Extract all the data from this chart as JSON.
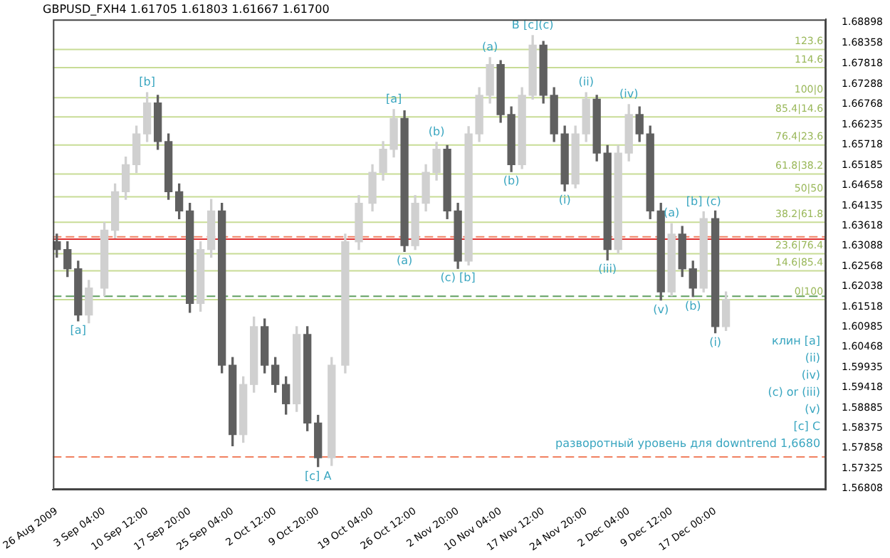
{
  "chart_data": {
    "type": "candlestick",
    "title": "GBPUSD_FXH4 1.61705 1.61803 1.61667 1.61700",
    "colors": [
      "#606060",
      "#606060",
      "#606060",
      "#d0d0d0",
      "#d0d0d0",
      "#d0d0d0",
      "#d0d0d0",
      "#d0d0d0",
      "#d0d0d0",
      "#606060",
      "#606060",
      "#606060",
      "#606060",
      "#d0d0d0",
      "#d0d0d0",
      "#606060",
      "#606060",
      "#d0d0d0",
      "#d0d0d0",
      "#606060",
      "#606060",
      "#606060",
      "#d0d0d0",
      "#606060",
      "#606060",
      "#d0d0d0",
      "#d0d0d0",
      "#d0d0d0",
      "#d0d0d0",
      "#d0d0d0",
      "#d0d0d0",
      "#606060",
      "#d0d0d0",
      "#d0d0d0",
      "#d0d0d0",
      "#606060",
      "#606060",
      "#d0d0d0",
      "#d0d0d0",
      "#d0d0d0",
      "#606060",
      "#606060",
      "#d0d0d0",
      "#d0d0d0",
      "#606060",
      "#606060",
      "#606060",
      "#d0d0d0",
      "#d0d0d0",
      "#606060",
      "#606060",
      "#d0d0d0",
      "#d0d0d0",
      "#606060",
      "#606060",
      "#606060",
      "#d0d0d0",
      "#606060",
      "#606060",
      "#d0d0d0",
      "#606060",
      "#d0d0d0"
    ],
    "x": [
      "2009-08-26T00:00",
      "2009-08-27T20:00",
      "2009-08-29T16:00",
      "2009-08-31T12:00",
      "2009-09-03T04:00",
      "2009-09-05T00:00",
      "2009-09-06T20:00",
      "2009-09-08T16:00",
      "2009-09-10T12:00",
      "2009-09-12T08:00",
      "2009-09-14T04:00",
      "2009-09-16T00:00",
      "2009-09-17T20:00",
      "2009-09-19T16:00",
      "2009-09-21T12:00",
      "2009-09-23T08:00",
      "2009-09-25T04:00",
      "2009-09-27T00:00",
      "2009-09-28T20:00",
      "2009-09-30T16:00",
      "2009-10-02T12:00",
      "2009-10-04T08:00",
      "2009-10-06T04:00",
      "2009-10-08T00:00",
      "2009-10-09T20:00",
      "2009-10-12T04:00",
      "2009-10-14T12:00",
      "2009-10-16T20:00",
      "2009-10-19T04:00",
      "2009-10-21T00:00",
      "2009-10-22T20:00",
      "2009-10-24T16:00",
      "2009-10-26T12:00",
      "2009-10-28T08:00",
      "2009-10-30T04:00",
      "2009-11-01T00:00",
      "2009-11-02T20:00",
      "2009-11-04T16:00",
      "2009-11-06T12:00",
      "2009-11-08T08:00",
      "2009-11-10T04:00",
      "2009-11-12T00:00",
      "2009-11-13T20:00",
      "2009-11-15T16:00",
      "2009-11-17T12:00",
      "2009-11-19T08:00",
      "2009-11-21T04:00",
      "2009-11-23T00:00",
      "2009-11-24T20:00",
      "2009-11-26T16:00",
      "2009-11-28T12:00",
      "2009-11-30T08:00",
      "2009-12-02T04:00",
      "2009-12-04T00:00",
      "2009-12-05T20:00",
      "2009-12-07T16:00",
      "2009-12-09T12:00",
      "2009-12-11T08:00",
      "2009-12-13T04:00",
      "2009-12-15T00:00",
      "2009-12-17T00:00",
      "2009-12-18T20:00"
    ],
    "ohlc": [
      [
        1.632,
        1.634,
        1.628,
        1.63
      ],
      [
        1.63,
        1.632,
        1.623,
        1.625
      ],
      [
        1.625,
        1.627,
        1.6115,
        1.613
      ],
      [
        1.613,
        1.622,
        1.611,
        1.62
      ],
      [
        1.62,
        1.637,
        1.618,
        1.635
      ],
      [
        1.635,
        1.647,
        1.633,
        1.645
      ],
      [
        1.645,
        1.654,
        1.643,
        1.652
      ],
      [
        1.652,
        1.662,
        1.65,
        1.66
      ],
      [
        1.66,
        1.6707,
        1.658,
        1.668
      ],
      [
        1.668,
        1.67,
        1.656,
        1.658
      ],
      [
        1.658,
        1.66,
        1.643,
        1.645
      ],
      [
        1.645,
        1.647,
        1.638,
        1.64
      ],
      [
        1.64,
        1.642,
        1.6137,
        1.616
      ],
      [
        1.616,
        1.632,
        1.614,
        1.63
      ],
      [
        1.63,
        1.643,
        1.628,
        1.64
      ],
      [
        1.64,
        1.642,
        1.598,
        1.6
      ],
      [
        1.6,
        1.602,
        1.5791,
        1.582
      ],
      [
        1.582,
        1.597,
        1.58,
        1.595
      ],
      [
        1.595,
        1.6125,
        1.593,
        1.61
      ],
      [
        1.61,
        1.612,
        1.598,
        1.6
      ],
      [
        1.6,
        1.602,
        1.593,
        1.595
      ],
      [
        1.595,
        1.597,
        1.5873,
        1.59
      ],
      [
        1.59,
        1.61,
        1.588,
        1.608
      ],
      [
        1.608,
        1.61,
        1.583,
        1.585
      ],
      [
        1.585,
        1.587,
        1.5737,
        1.576
      ],
      [
        1.576,
        1.602,
        1.574,
        1.6
      ],
      [
        1.6,
        1.634,
        1.598,
        1.632
      ],
      [
        1.632,
        1.644,
        1.63,
        1.642
      ],
      [
        1.642,
        1.652,
        1.64,
        1.65
      ],
      [
        1.65,
        1.658,
        1.648,
        1.656
      ],
      [
        1.656,
        1.6663,
        1.654,
        1.664
      ],
      [
        1.664,
        1.666,
        1.6295,
        1.631
      ],
      [
        1.631,
        1.644,
        1.63,
        1.642
      ],
      [
        1.642,
        1.652,
        1.64,
        1.65
      ],
      [
        1.65,
        1.6578,
        1.648,
        1.656
      ],
      [
        1.656,
        1.657,
        1.638,
        1.64
      ],
      [
        1.64,
        1.642,
        1.6251,
        1.627
      ],
      [
        1.627,
        1.6619,
        1.626,
        1.66
      ],
      [
        1.66,
        1.672,
        1.658,
        1.67
      ],
      [
        1.67,
        1.6798,
        1.668,
        1.678
      ],
      [
        1.678,
        1.679,
        1.663,
        1.665
      ],
      [
        1.665,
        1.667,
        1.6502,
        1.652
      ],
      [
        1.652,
        1.672,
        1.651,
        1.67
      ],
      [
        1.67,
        1.6855,
        1.669,
        1.683
      ],
      [
        1.683,
        1.684,
        1.668,
        1.67
      ],
      [
        1.67,
        1.672,
        1.658,
        1.66
      ],
      [
        1.66,
        1.662,
        1.6452,
        1.647
      ],
      [
        1.647,
        1.662,
        1.646,
        1.66
      ],
      [
        1.66,
        1.6707,
        1.658,
        1.669
      ],
      [
        1.669,
        1.67,
        1.653,
        1.655
      ],
      [
        1.655,
        1.657,
        1.6273,
        1.63
      ],
      [
        1.63,
        1.657,
        1.629,
        1.655
      ],
      [
        1.655,
        1.6676,
        1.653,
        1.665
      ],
      [
        1.665,
        1.667,
        1.658,
        1.66
      ],
      [
        1.66,
        1.662,
        1.638,
        1.64
      ],
      [
        1.64,
        1.642,
        1.6169,
        1.619
      ],
      [
        1.619,
        1.6367,
        1.618,
        1.634
      ],
      [
        1.634,
        1.636,
        1.623,
        1.625
      ],
      [
        1.625,
        1.627,
        1.6178,
        1.62
      ],
      [
        1.62,
        1.6398,
        1.619,
        1.638
      ],
      [
        1.638,
        1.64,
        1.6084,
        1.61
      ],
      [
        1.61,
        1.619,
        1.609,
        1.617
      ]
    ],
    "xlim": [
      "2009-08-25T08:00",
      "2010-01-05T00:00"
    ],
    "xticks": [
      {
        "value": "2009-08-26T00:00",
        "label": "26 Aug 2009"
      },
      {
        "value": "2009-09-03T04:00",
        "label": "3 Sep 04:00"
      },
      {
        "value": "2009-09-10T12:00",
        "label": "10 Sep 12:00"
      },
      {
        "value": "2009-09-17T20:00",
        "label": "17 Sep 20:00"
      },
      {
        "value": "2009-09-25T04:00",
        "label": "25 Sep 04:00"
      },
      {
        "value": "2009-10-02T12:00",
        "label": "2 Oct 12:00"
      },
      {
        "value": "2009-10-09T20:00",
        "label": "9 Oct 20:00"
      },
      {
        "value": "2009-10-19T04:00",
        "label": "19 Oct 04:00"
      },
      {
        "value": "2009-10-26T12:00",
        "label": "26 Oct 12:00"
      },
      {
        "value": "2009-11-02T20:00",
        "label": "2 Nov 20:00"
      },
      {
        "value": "2009-11-10T04:00",
        "label": "10 Nov 04:00"
      },
      {
        "value": "2009-11-17T12:00",
        "label": "17 Nov 12:00"
      },
      {
        "value": "2009-11-24T20:00",
        "label": "24 Nov 20:00"
      },
      {
        "value": "2009-12-02T04:00",
        "label": "2 Dec 04:00"
      },
      {
        "value": "2009-12-09T12:00",
        "label": "9 Dec 12:00"
      },
      {
        "value": "2009-12-17T00:00",
        "label": "17 Dec 00:00"
      }
    ],
    "ylim": [
      1.5677,
      1.6897
    ],
    "yticks": [
      1.56808,
      1.57325,
      1.57858,
      1.58375,
      1.58885,
      1.59418,
      1.59935,
      1.60468,
      1.60985,
      1.61518,
      1.62038,
      1.62568,
      1.63088,
      1.63618,
      1.64135,
      1.64658,
      1.65185,
      1.65718,
      1.66235,
      1.66768,
      1.67288,
      1.67818,
      1.68358,
      1.68898
    ],
    "grid": false,
    "ref_lines": [
      {
        "axis": "y",
        "value": 1.6819,
        "color": "#c8dc96",
        "line_style": "solid"
      },
      {
        "axis": "y",
        "value": 1.6772,
        "color": "#c8dc96",
        "line_style": "solid"
      },
      {
        "axis": "y",
        "value": 1.6694,
        "color": "#c8dc96",
        "line_style": "solid"
      },
      {
        "axis": "y",
        "value": 1.6644,
        "color": "#c8dc96",
        "line_style": "solid"
      },
      {
        "axis": "y",
        "value": 1.6571,
        "color": "#c8dc96",
        "line_style": "solid"
      },
      {
        "axis": "y",
        "value": 1.6496,
        "color": "#c8dc96",
        "line_style": "solid"
      },
      {
        "axis": "y",
        "value": 1.6437,
        "color": "#c8dc96",
        "line_style": "solid"
      },
      {
        "axis": "y",
        "value": 1.6371,
        "color": "#c8dc96",
        "line_style": "solid"
      },
      {
        "axis": "y",
        "value": 1.6289,
        "color": "#c8dc96",
        "line_style": "solid"
      },
      {
        "axis": "y",
        "value": 1.6245,
        "color": "#c8dc96",
        "line_style": "solid"
      },
      {
        "axis": "y",
        "value": 1.617,
        "color": "#c8dc96",
        "line_style": "solid"
      },
      {
        "axis": "y",
        "value": 1.6333,
        "color": "#f08060",
        "line_style": "dashed"
      },
      {
        "axis": "y",
        "value": 1.6327,
        "color": "#e03030",
        "line_style": "solid"
      },
      {
        "axis": "y",
        "value": 1.6179,
        "color": "#60a060",
        "line_style": "dashed"
      },
      {
        "axis": "y",
        "value": 1.5762,
        "color": "#f08060",
        "line_style": "dashed"
      }
    ],
    "annotations": [
      {
        "text": "123.6",
        "y": 1.6819
      },
      {
        "text": "114.6",
        "y": 1.6772
      },
      {
        "text": "100|0",
        "y": 1.6694
      },
      {
        "text": "85.4|14.6",
        "y": 1.6644
      },
      {
        "text": "76.4|23.6",
        "y": 1.6571
      },
      {
        "text": "61.8|38.2",
        "y": 1.6496
      },
      {
        "text": "50|50",
        "y": 1.6437
      },
      {
        "text": "38.2|61.8",
        "y": 1.6371
      },
      {
        "text": "23.6|76.4",
        "y": 1.6289
      },
      {
        "text": "14.6|85.4",
        "y": 1.6245
      },
      {
        "text": "0|100",
        "y": 1.617
      },
      {
        "text": "[a]",
        "x": "2009-08-29T16:00",
        "y": 1.6115
      },
      {
        "text": "[b]",
        "x": "2009-09-10T12:00",
        "y": 1.6707
      },
      {
        "text": "[c] A",
        "x": "2009-10-09T20:00",
        "y": 1.5737
      },
      {
        "text": "[a]",
        "x": "2009-10-22T20:00",
        "y": 1.6663
      },
      {
        "text": "(a)",
        "x": "2009-10-24T16:00",
        "y": 1.6295
      },
      {
        "text": "(b)",
        "x": "2009-10-30T04:00",
        "y": 1.6578
      },
      {
        "text": "(c) [b]",
        "x": "2009-11-02T20:00",
        "y": 1.6251
      },
      {
        "text": "(a)",
        "x": "2009-11-08T08:00",
        "y": 1.6798
      },
      {
        "text": "(b)",
        "x": "2009-11-12T00:00",
        "y": 1.6502
      },
      {
        "text": "B [c](c)",
        "x": "2009-11-15T16:00",
        "y": 1.6855
      },
      {
        "text": "(i)",
        "x": "2009-11-21T04:00",
        "y": 1.6452
      },
      {
        "text": "(ii)",
        "x": "2009-11-24T20:00",
        "y": 1.6707
      },
      {
        "text": "(iii)",
        "x": "2009-11-28T12:00",
        "y": 1.6273
      },
      {
        "text": "(iv)",
        "x": "2009-12-02T04:00",
        "y": 1.6676
      },
      {
        "text": "(v)",
        "x": "2009-12-07T16:00",
        "y": 1.6169
      },
      {
        "text": "(a)",
        "x": "2009-12-09T12:00",
        "y": 1.6367
      },
      {
        "text": "(b)",
        "x": "2009-12-13T04:00",
        "y": 1.6178
      },
      {
        "text": "[b] (c)",
        "x": "2009-12-15T00:00",
        "y": 1.6398
      },
      {
        "text": "(i)",
        "x": "2009-12-17T00:00",
        "y": 1.6084
      },
      "клин [a]",
      "(ii)",
      "(iv)",
      "(c) or (iii)",
      "(v)",
      "[c] C",
      "разворотный уровень для downtrend 1,6680"
    ]
  }
}
